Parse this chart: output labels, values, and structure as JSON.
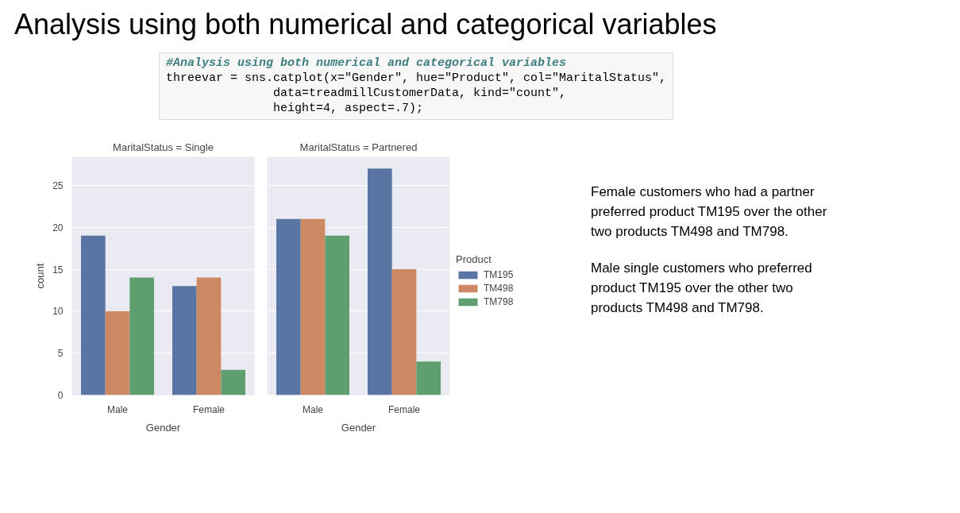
{
  "chart_data": [
    {
      "type": "other",
      "title": "Analysis using both numerical and categorical variables",
      "annotations": [
        "#Analysis using both numerical and categorical variables",
        "threevar = sns.catplot(x=\"Gender\", hue=\"Product\", col=\"MaritalStatus\",",
        "               data=treadmillCustomerData, kind=\"count\",",
        "               height=4, aspect=.7);"
      ]
    },
    {
      "type": "bar",
      "title": "MaritalStatus = Single",
      "xlabel": "Gender",
      "ylabel": "count",
      "categories": [
        "Male",
        "Female"
      ],
      "ylim": [
        0,
        28.4
      ],
      "yticks": [
        0,
        5,
        10,
        15,
        20,
        25
      ],
      "grid": "y",
      "legend": false,
      "series": [
        {
          "color": "#5975a4",
          "values": [
            19,
            13
          ]
        },
        {
          "color": "#cc8963",
          "values": [
            10,
            14
          ]
        },
        {
          "color": "#5f9e6e",
          "values": [
            14,
            3
          ]
        }
      ]
    },
    {
      "type": "bar",
      "title": "MaritalStatus = Partnered",
      "xlabel": "Gender",
      "categories": [
        "Male",
        "Female"
      ],
      "ylim": [
        0,
        28.4
      ],
      "yticks": [
        0,
        5,
        10,
        15,
        20,
        25
      ],
      "grid": "y",
      "tick_labels": "x",
      "legend": "right",
      "legend_title": "Product",
      "series": [
        {
          "name": "TM195",
          "color": "#5975a4",
          "values": [
            21,
            27
          ]
        },
        {
          "name": "TM498",
          "color": "#cc8963",
          "values": [
            21,
            15
          ]
        },
        {
          "name": "TM798",
          "color": "#5f9e6e",
          "values": [
            19,
            4
          ]
        }
      ]
    },
    {
      "type": "other",
      "annotations": [
        "Female customers who had a partner preferred product TM195 over the other two products TM498 and TM798.",
        "Male single customers who preferred product TM195 over the other two products TM498 and TM798."
      ]
    }
  ]
}
